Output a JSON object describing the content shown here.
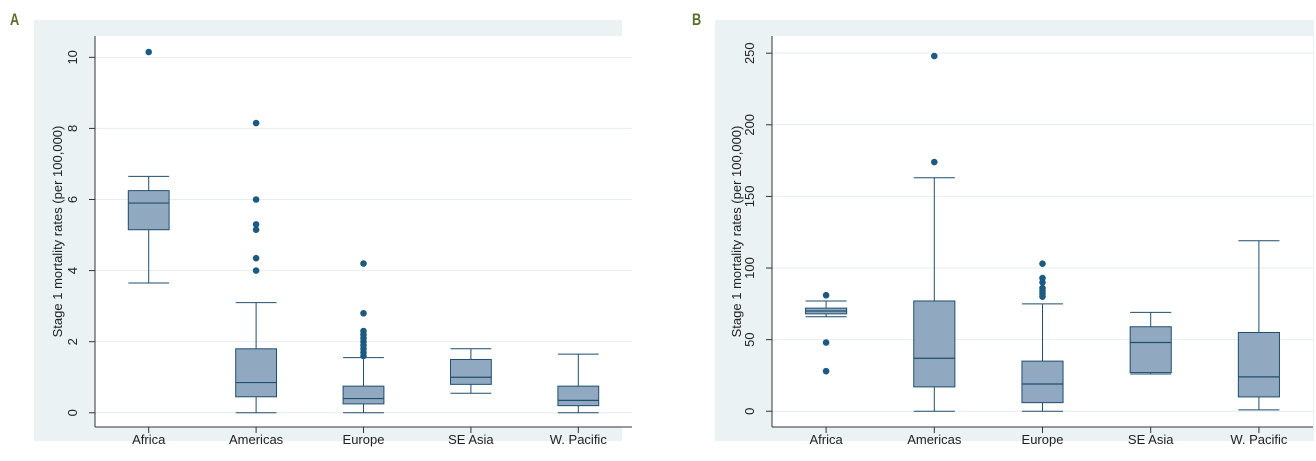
{
  "colors": {
    "background": "#eaf2f3",
    "plot_area": "#ffffff",
    "box_fill": "#91a9c0",
    "box_stroke": "#1f4e6e",
    "outlier": "#1c5a80",
    "grid": "#e6edf0",
    "panel_letter": "#5a6f2e"
  },
  "chart_data": [
    {
      "panel_label": "A",
      "type": "box",
      "ylabel": "Stage 1 mortality rates (per 100,000)",
      "xlabel": "",
      "categories": [
        "Africa",
        "Americas",
        "Europe",
        "SE Asia",
        "W. Pacific"
      ],
      "yticks": [
        0,
        2,
        4,
        6,
        8,
        10
      ],
      "ylim": [
        -0.4,
        10.6
      ],
      "grid": true,
      "boxes": [
        {
          "category": "Africa",
          "whisker_low": 3.65,
          "q1": 5.15,
          "median": 5.9,
          "q3": 6.25,
          "whisker_high": 6.65,
          "outliers": [
            10.15
          ]
        },
        {
          "category": "Americas",
          "whisker_low": 0.0,
          "q1": 0.45,
          "median": 0.85,
          "q3": 1.8,
          "whisker_high": 3.1,
          "outliers": [
            4.0,
            4.35,
            5.15,
            5.3,
            6.0,
            8.15
          ]
        },
        {
          "category": "Europe",
          "whisker_low": 0.0,
          "q1": 0.25,
          "median": 0.4,
          "q3": 0.75,
          "whisker_high": 1.55,
          "outliers": [
            1.6,
            1.7,
            1.8,
            1.9,
            2.0,
            2.1,
            2.2,
            2.3,
            2.8,
            4.2
          ]
        },
        {
          "category": "SE Asia",
          "whisker_low": 0.55,
          "q1": 0.8,
          "median": 1.0,
          "q3": 1.5,
          "whisker_high": 1.8,
          "outliers": []
        },
        {
          "category": "W. Pacific",
          "whisker_low": 0.0,
          "q1": 0.2,
          "median": 0.35,
          "q3": 0.75,
          "whisker_high": 1.65,
          "outliers": []
        }
      ]
    },
    {
      "panel_label": "B",
      "type": "box",
      "ylabel": "Stage 1 mortality rates (per 100,000)",
      "xlabel": "",
      "categories": [
        "Africa",
        "Americas",
        "Europe",
        "SE Asia",
        "W. Pacific"
      ],
      "yticks": [
        0,
        50,
        100,
        150,
        200,
        250
      ],
      "ylim": [
        -11,
        262
      ],
      "grid": true,
      "boxes": [
        {
          "category": "Africa",
          "whisker_low": 66,
          "q1": 68,
          "median": 70,
          "q3": 72,
          "whisker_high": 77,
          "outliers": [
            28,
            48,
            81
          ]
        },
        {
          "category": "Americas",
          "whisker_low": 0,
          "q1": 17,
          "median": 37,
          "q3": 77,
          "whisker_high": 163,
          "outliers": [
            174,
            248
          ]
        },
        {
          "category": "Europe",
          "whisker_low": 0,
          "q1": 6,
          "median": 19,
          "q3": 35,
          "whisker_high": 75,
          "outliers": [
            80,
            82,
            84,
            86,
            90,
            93,
            103
          ]
        },
        {
          "category": "SE Asia",
          "whisker_low": 26,
          "q1": 27,
          "median": 48,
          "q3": 59,
          "whisker_high": 69,
          "outliers": []
        },
        {
          "category": "W. Pacific",
          "whisker_low": 1,
          "q1": 10,
          "median": 24,
          "q3": 55,
          "whisker_high": 119,
          "outliers": []
        }
      ]
    }
  ]
}
